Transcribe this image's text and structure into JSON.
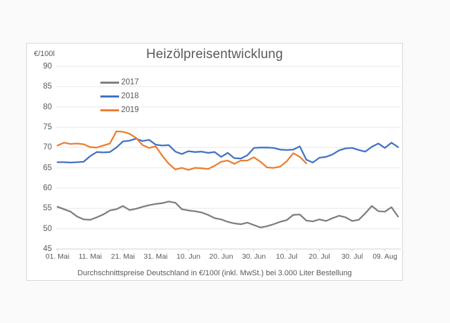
{
  "window": {
    "page_background": "#fafafa",
    "panel_background": "#ffffff",
    "panel_border": "#d8d8d8"
  },
  "chart_data": {
    "type": "line",
    "title": "Heizölpreisentwicklung",
    "unit_label": "€/100l",
    "caption": "Durchschnittspreise Deutschland in €/100l (inkl. MwSt.) bei 3.000 Liter Bestellung",
    "grid": true,
    "legend_position": "inside-top-left",
    "colors": {
      "grid": "#e8e8e8",
      "axis": "#d2d2d2",
      "text": "#595959"
    },
    "y_axis": {
      "ticks": [
        90,
        85,
        80,
        75,
        70,
        65,
        60,
        55,
        50,
        45
      ],
      "ylim": [
        45,
        90
      ]
    },
    "x_axis": {
      "tick_labels": [
        "01. Mai",
        "11. Mai",
        "21. Mai",
        "31. Mai",
        "10. Jun",
        "20. Jun",
        "30. Jun",
        "10. Jul",
        "20. Jul",
        "30. Jul",
        "09. Aug"
      ],
      "tick_days": [
        0,
        10,
        20,
        30,
        40,
        50,
        60,
        70,
        80,
        90,
        100
      ],
      "domain_days": [
        0,
        105
      ]
    },
    "series": [
      {
        "name": "2017",
        "color": "#7f7f7f",
        "start_day": 0,
        "step_days": 2,
        "values": [
          55.4,
          54.8,
          54.2,
          53.0,
          52.3,
          52.2,
          52.8,
          53.5,
          54.5,
          54.8,
          55.6,
          54.6,
          54.9,
          55.4,
          55.8,
          56.1,
          56.3,
          56.7,
          56.4,
          54.8,
          54.5,
          54.3,
          54.0,
          53.4,
          52.6,
          52.3,
          51.7,
          51.3,
          51.1,
          51.5,
          50.9,
          50.3,
          50.6,
          51.1,
          51.7,
          52.1,
          53.4,
          53.5,
          52.0,
          51.8,
          52.3,
          51.9,
          52.6,
          53.2,
          52.8,
          51.9,
          52.2,
          53.8,
          55.6,
          54.3,
          54.2,
          55.3,
          53.0
        ]
      },
      {
        "name": "2018",
        "color": "#4472c4",
        "start_day": 0,
        "step_days": 2,
        "values": [
          66.4,
          66.4,
          66.3,
          66.4,
          66.5,
          67.9,
          68.9,
          68.8,
          68.9,
          70.0,
          71.5,
          71.7,
          72.2,
          71.6,
          71.9,
          70.7,
          70.5,
          70.6,
          69.0,
          68.4,
          69.1,
          68.9,
          69.0,
          68.7,
          68.9,
          67.7,
          68.7,
          67.4,
          67.3,
          68.1,
          69.9,
          70.0,
          70.0,
          69.9,
          69.5,
          69.4,
          69.5,
          70.3,
          67.0,
          66.3,
          67.5,
          67.7,
          68.3,
          69.3,
          69.8,
          69.9,
          69.4,
          69.0,
          70.2,
          71.0,
          69.9,
          71.2,
          70.1
        ]
      },
      {
        "name": "2019",
        "color": "#ed7d31",
        "start_day": 0,
        "step_days": 2,
        "values": [
          70.5,
          71.2,
          70.9,
          71.0,
          70.8,
          70.1,
          70.0,
          70.5,
          71.0,
          74.0,
          73.9,
          73.4,
          72.4,
          70.6,
          69.9,
          70.3,
          68.0,
          66.0,
          64.6,
          65.0,
          64.5,
          65.0,
          64.9,
          64.7,
          65.5,
          66.5,
          66.8,
          66.0,
          66.8,
          66.8,
          67.6,
          66.5,
          65.1,
          65.0,
          65.3,
          66.6,
          68.6,
          67.7,
          66.1
        ]
      }
    ]
  }
}
